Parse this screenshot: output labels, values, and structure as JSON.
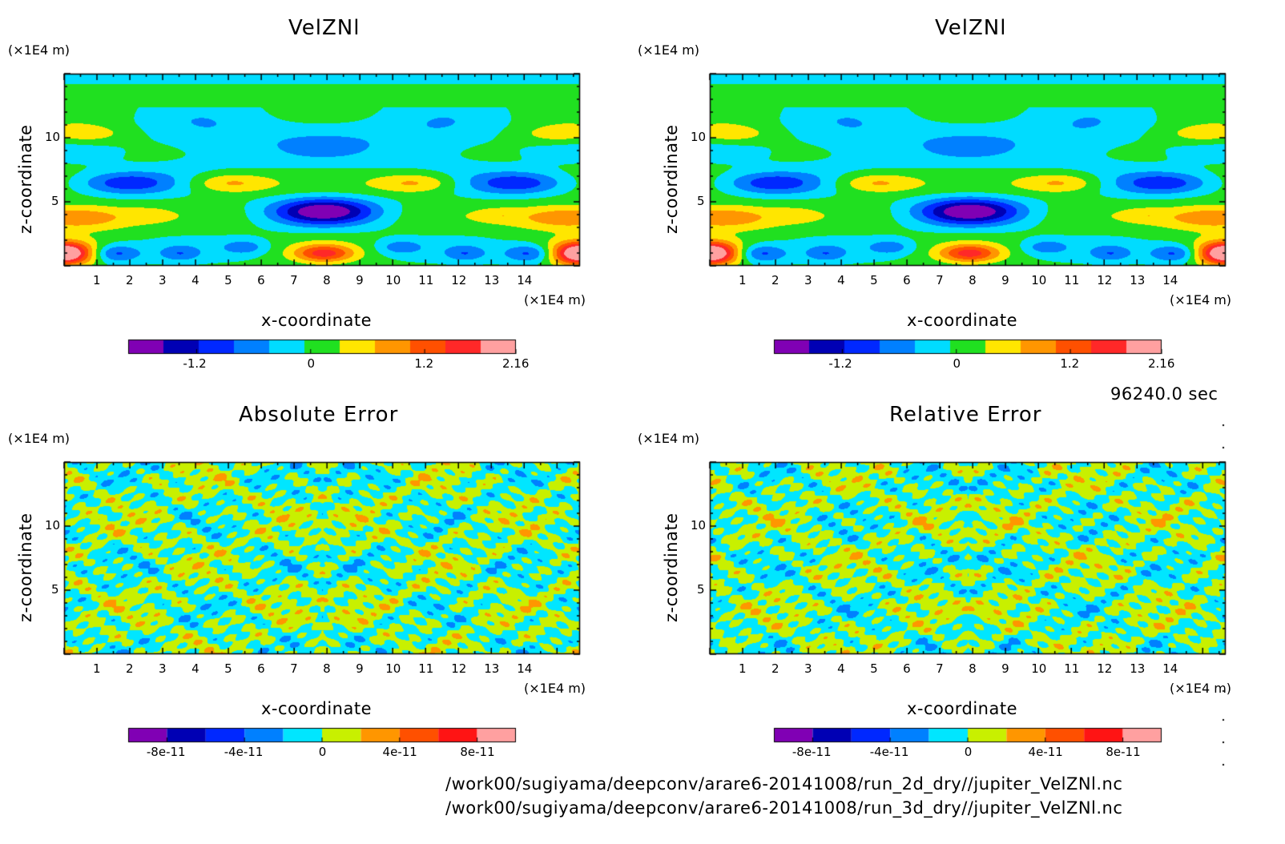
{
  "time_label": "96240.0 sec",
  "footer_lines": [
    "/work00/sugiyama/deepconv/arare6-20141008/run_2d_dry//jupiter_VelZNl.nc",
    "/work00/sugiyama/deepconv/arare6-20141008/run_3d_dry//jupiter_VelZNl.nc"
  ],
  "chart_data": [
    {
      "type": "heatmap",
      "title": "VelZNl",
      "xlabel": "x-coordinate",
      "ylabel": "z-coordinate",
      "x_unit": "(×1E4 m)",
      "y_unit": "(×1E4 m)",
      "xlim": [
        0,
        15
      ],
      "ylim": [
        0,
        15
      ],
      "x_ticks": [
        1,
        2,
        3,
        4,
        5,
        6,
        7,
        8,
        9,
        10,
        11,
        12,
        13,
        14
      ],
      "y_ticks": [
        5,
        10
      ],
      "colorbar": {
        "colors": [
          "#8000b4",
          "#0000b4",
          "#0028ff",
          "#0080ff",
          "#00dcff",
          "#20e020",
          "#ffe600",
          "#ff9600",
          "#ff5000",
          "#ff2828",
          "#ffa0a0"
        ],
        "tick_labels": [
          "-1.2",
          "0",
          "1.2",
          "2.16"
        ],
        "tick_values": [
          -1.2,
          0,
          1.2,
          2.16
        ],
        "range": [
          -1.92,
          2.16
        ]
      }
    },
    {
      "type": "heatmap",
      "title": "VelZNl",
      "xlabel": "x-coordinate",
      "ylabel": "z-coordinate",
      "x_unit": "(×1E4 m)",
      "y_unit": "(×1E4 m)",
      "xlim": [
        0,
        15
      ],
      "ylim": [
        0,
        15
      ],
      "x_ticks": [
        1,
        2,
        3,
        4,
        5,
        6,
        7,
        8,
        9,
        10,
        11,
        12,
        13,
        14
      ],
      "y_ticks": [
        5,
        10
      ],
      "colorbar": {
        "colors": [
          "#8000b4",
          "#0000b4",
          "#0028ff",
          "#0080ff",
          "#00dcff",
          "#20e020",
          "#ffe600",
          "#ff9600",
          "#ff5000",
          "#ff2828",
          "#ffa0a0"
        ],
        "tick_labels": [
          "-1.2",
          "0",
          "1.2",
          "2.16"
        ],
        "tick_values": [
          -1.2,
          0,
          1.2,
          2.16
        ],
        "range": [
          -1.92,
          2.16
        ]
      }
    },
    {
      "type": "heatmap",
      "title": "Absolute Error",
      "xlabel": "x-coordinate",
      "ylabel": "z-coordinate",
      "x_unit": "(×1E4 m)",
      "y_unit": "(×1E4 m)",
      "xlim": [
        0,
        15
      ],
      "ylim": [
        0,
        15
      ],
      "x_ticks": [
        1,
        2,
        3,
        4,
        5,
        6,
        7,
        8,
        9,
        10,
        11,
        12,
        13,
        14
      ],
      "y_ticks": [
        5,
        10
      ],
      "colorbar": {
        "colors": [
          "#8000b4",
          "#0000b4",
          "#0028ff",
          "#0080ff",
          "#00e6ff",
          "#c8f000",
          "#ff9600",
          "#ff5000",
          "#ff1414",
          "#ffa0a0"
        ],
        "tick_labels": [
          "-8e-11",
          "-4e-11",
          "0",
          "4e-11",
          "8e-11"
        ],
        "tick_values": [
          -8e-11,
          -4e-11,
          0,
          4e-11,
          8e-11
        ],
        "range": [
          -1e-10,
          1e-10
        ]
      }
    },
    {
      "type": "heatmap",
      "title": "Relative Error",
      "xlabel": "x-coordinate",
      "ylabel": "z-coordinate",
      "x_unit": "(×1E4 m)",
      "y_unit": "(×1E4 m)",
      "xlim": [
        0,
        15
      ],
      "ylim": [
        0,
        15
      ],
      "x_ticks": [
        1,
        2,
        3,
        4,
        5,
        6,
        7,
        8,
        9,
        10,
        11,
        12,
        13,
        14
      ],
      "y_ticks": [
        5,
        10
      ],
      "colorbar": {
        "colors": [
          "#8000b4",
          "#0000b4",
          "#0028ff",
          "#0080ff",
          "#00e6ff",
          "#c8f000",
          "#ff9600",
          "#ff5000",
          "#ff1414",
          "#ffa0a0"
        ],
        "tick_labels": [
          "-8e-11",
          "-4e-11",
          "0",
          "4e-11",
          "8e-11"
        ],
        "tick_values": [
          -8e-11,
          -4e-11,
          0,
          4e-11,
          8e-11
        ],
        "range": [
          -1e-10,
          1e-10
        ]
      }
    }
  ]
}
